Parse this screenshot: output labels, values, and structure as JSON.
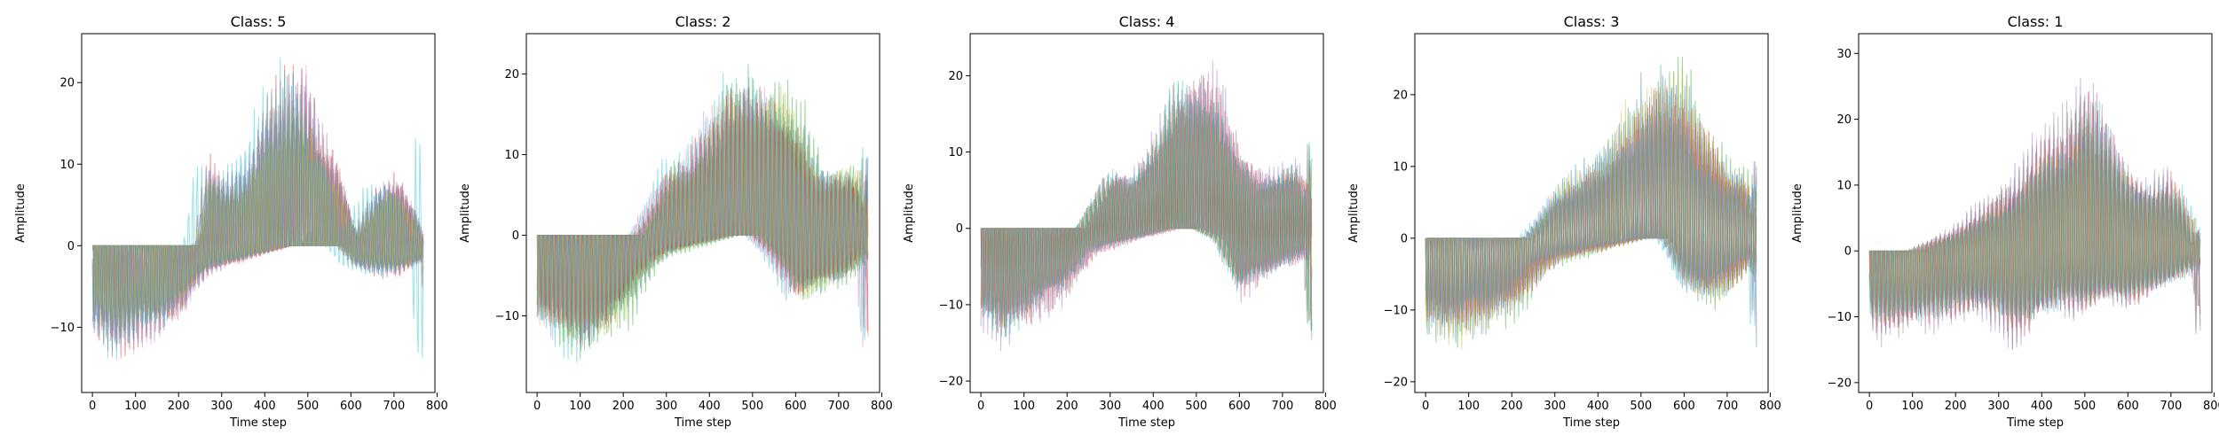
{
  "chart_data": [
    {
      "type": "line",
      "title": "Class: 5",
      "xlabel": "Time step",
      "ylabel": "Amplitude",
      "xlim": [
        -25,
        795
      ],
      "ylim": [
        -18,
        26
      ],
      "xticks": [
        0,
        100,
        200,
        300,
        400,
        500,
        600,
        700,
        800
      ],
      "yticks": [
        -10,
        0,
        10,
        20
      ],
      "grid": false,
      "legend": "none",
      "series_count": 10,
      "profile": {
        "x": [
          0,
          50,
          100,
          150,
          200,
          230,
          260,
          300,
          350,
          400,
          450,
          490,
          520,
          560,
          600,
          650,
          700,
          740,
          760,
          768
        ],
        "upper": [
          0,
          0,
          0,
          0,
          0,
          0,
          12,
          9,
          11,
          20,
          23,
          22,
          16,
          12,
          2,
          8,
          10,
          5,
          1,
          14
        ],
        "lower": [
          -12,
          -15,
          -13,
          -12,
          -10,
          -6,
          -4,
          -3,
          -2,
          -1,
          0,
          0,
          0,
          0,
          -3,
          -4,
          -4,
          -3,
          -2,
          -17
        ]
      }
    },
    {
      "type": "line",
      "title": "Class: 2",
      "xlabel": "Time step",
      "ylabel": "Amplitude",
      "xlim": [
        -25,
        795
      ],
      "ylim": [
        -19.5,
        25
      ],
      "xticks": [
        0,
        100,
        200,
        300,
        400,
        500,
        600,
        700,
        800
      ],
      "yticks": [
        -10,
        0,
        10,
        20
      ],
      "grid": false,
      "legend": "none",
      "series_count": 10,
      "profile": {
        "x": [
          0,
          50,
          100,
          150,
          200,
          230,
          260,
          300,
          350,
          400,
          450,
          500,
          550,
          600,
          650,
          700,
          740,
          760,
          768
        ],
        "upper": [
          0,
          0,
          0,
          0,
          0,
          0,
          4,
          10,
          11,
          18,
          23,
          22,
          22,
          18,
          9,
          10,
          10,
          4,
          12
        ],
        "lower": [
          -13,
          -16,
          -17,
          -15,
          -12,
          -8,
          -5,
          -3,
          -2,
          -1,
          0,
          0,
          -4,
          -10,
          -8,
          -7,
          -5,
          -3,
          -17
        ]
      }
    },
    {
      "type": "line",
      "title": "Class: 4",
      "xlabel": "Time step",
      "ylabel": "Amplitude",
      "xlim": [
        -25,
        795
      ],
      "ylim": [
        -21.5,
        25.5
      ],
      "xticks": [
        0,
        100,
        200,
        300,
        400,
        500,
        600,
        700,
        800
      ],
      "yticks": [
        -20,
        -10,
        0,
        10,
        20
      ],
      "grid": false,
      "legend": "none",
      "series_count": 10,
      "profile": {
        "x": [
          0,
          50,
          100,
          150,
          200,
          230,
          260,
          300,
          350,
          400,
          450,
          500,
          550,
          600,
          650,
          700,
          740,
          760,
          768
        ],
        "upper": [
          0,
          0,
          0,
          0,
          0,
          0,
          4,
          9,
          8,
          13,
          22,
          23,
          22,
          12,
          8,
          9,
          10,
          5,
          13
        ],
        "lower": [
          -14,
          -17,
          -15,
          -12,
          -10,
          -7,
          -4,
          -3,
          -2,
          -1,
          0,
          0,
          -2,
          -10,
          -8,
          -6,
          -5,
          -4,
          -19
        ]
      }
    },
    {
      "type": "line",
      "title": "Class: 3",
      "xlabel": "Time step",
      "ylabel": "Amplitude",
      "xlim": [
        -25,
        795
      ],
      "ylim": [
        -21.5,
        28.5
      ],
      "xticks": [
        0,
        100,
        200,
        300,
        400,
        500,
        600,
        700,
        800
      ],
      "yticks": [
        -20,
        -10,
        0,
        10,
        20
      ],
      "grid": false,
      "legend": "none",
      "series_count": 10,
      "profile": {
        "x": [
          0,
          50,
          100,
          150,
          200,
          230,
          260,
          300,
          350,
          400,
          450,
          500,
          550,
          600,
          650,
          700,
          740,
          760,
          768
        ],
        "upper": [
          0,
          0,
          0,
          0,
          0,
          0,
          3,
          8,
          10,
          13,
          18,
          22,
          26,
          24,
          16,
          11,
          10,
          5,
          13
        ],
        "lower": [
          -14,
          -16,
          -15,
          -13,
          -12,
          -9,
          -6,
          -4,
          -3,
          -2,
          -1,
          0,
          0,
          -8,
          -10,
          -8,
          -5,
          -4,
          -18
        ]
      }
    },
    {
      "type": "line",
      "title": "Class: 1",
      "xlabel": "Time step",
      "ylabel": "Amplitude",
      "xlim": [
        -25,
        795
      ],
      "ylim": [
        -21.5,
        33
      ],
      "xticks": [
        0,
        100,
        200,
        300,
        400,
        500,
        600,
        700,
        800
      ],
      "yticks": [
        -20,
        -10,
        0,
        10,
        20,
        30
      ],
      "grid": false,
      "legend": "none",
      "series_count": 10,
      "profile": {
        "x": [
          0,
          50,
          100,
          150,
          200,
          250,
          300,
          350,
          400,
          450,
          500,
          550,
          600,
          650,
          700,
          740,
          760,
          768
        ],
        "upper": [
          0,
          0,
          0,
          2,
          4,
          7,
          10,
          14,
          20,
          22,
          30,
          24,
          15,
          12,
          14,
          8,
          2,
          4
        ],
        "lower": [
          -14,
          -15,
          -14,
          -13,
          -12,
          -11,
          -13,
          -16,
          -12,
          -10,
          -11,
          -9,
          -10,
          -8,
          -6,
          -4,
          -3,
          -14
        ]
      }
    }
  ]
}
